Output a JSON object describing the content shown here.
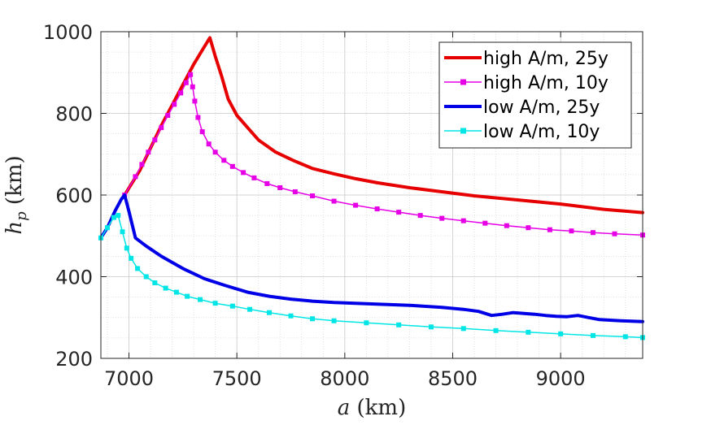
{
  "chart_data": {
    "type": "line",
    "title": "",
    "xlabel": "a (km)",
    "ylabel": "h_p (km)",
    "xlabel_parts": {
      "var": "a",
      "unit": " (km)"
    },
    "ylabel_parts": {
      "var": "h",
      "sub": "p",
      "unit": " (km)"
    },
    "xlim": [
      6870,
      9380
    ],
    "ylim": [
      200,
      1000
    ],
    "xticks": [
      7000,
      7500,
      8000,
      8500,
      9000
    ],
    "yticks": [
      200,
      400,
      600,
      800,
      1000
    ],
    "xtick_labels": [
      "7000",
      "7500",
      "8000",
      "8500",
      "9000"
    ],
    "ytick_labels": [
      "200",
      "400",
      "600",
      "800",
      "1000"
    ],
    "grid": true,
    "minor_grid": true,
    "legend_position": "top-right",
    "series": [
      {
        "name": "high A/m, 25y",
        "color": "#e60000",
        "marker": "none",
        "width": 4,
        "x": [
          6980,
          7050,
          7100,
          7150,
          7200,
          7250,
          7300,
          7340,
          7375,
          7400,
          7430,
          7460,
          7500,
          7550,
          7600,
          7680,
          7760,
          7850,
          7950,
          8050,
          8150,
          8300,
          8450,
          8600,
          8800,
          9000,
          9200,
          9380
        ],
        "values": [
          600,
          660,
          715,
          770,
          820,
          870,
          920,
          955,
          985,
          940,
          890,
          835,
          795,
          765,
          735,
          705,
          685,
          665,
          652,
          640,
          630,
          618,
          608,
          598,
          588,
          578,
          565,
          557
        ]
      },
      {
        "name": "high A/m, 10y",
        "color": "#e600e6",
        "marker": "square",
        "width": 1.5,
        "x": [
          6980,
          7030,
          7060,
          7090,
          7120,
          7150,
          7180,
          7210,
          7240,
          7265,
          7285,
          7295,
          7305,
          7320,
          7340,
          7370,
          7400,
          7440,
          7480,
          7530,
          7580,
          7640,
          7700,
          7770,
          7850,
          7950,
          8050,
          8150,
          8250,
          8350,
          8450,
          8550,
          8650,
          8750,
          8850,
          8950,
          9050,
          9150,
          9250,
          9380
        ],
        "values": [
          600,
          645,
          675,
          705,
          735,
          765,
          795,
          822,
          850,
          875,
          895,
          865,
          830,
          790,
          755,
          725,
          705,
          685,
          670,
          655,
          642,
          628,
          618,
          608,
          598,
          585,
          575,
          566,
          558,
          550,
          543,
          537,
          531,
          525,
          520,
          515,
          512,
          508,
          505,
          502
        ]
      },
      {
        "name": "low A/m, 25y",
        "color": "#0000e6",
        "marker": "none",
        "width": 4,
        "x": [
          6870,
          6900,
          6935,
          6965,
          6980,
          7000,
          7030,
          7080,
          7150,
          7250,
          7350,
          7450,
          7550,
          7650,
          7750,
          7850,
          7950,
          8050,
          8150,
          8300,
          8450,
          8550,
          8620,
          8680,
          8730,
          8780,
          8830,
          8880,
          8930,
          8980,
          9030,
          9080,
          9130,
          9180,
          9280,
          9380
        ],
        "values": [
          495,
          520,
          560,
          590,
          600,
          560,
          495,
          475,
          450,
          420,
          395,
          378,
          362,
          352,
          345,
          340,
          337,
          335,
          333,
          330,
          325,
          320,
          315,
          305,
          308,
          312,
          310,
          308,
          305,
          303,
          302,
          305,
          300,
          295,
          292,
          290
        ]
      },
      {
        "name": "low A/m, 10y",
        "color": "#00e6e6",
        "marker": "square",
        "width": 1.5,
        "x": [
          6870,
          6900,
          6930,
          6950,
          6970,
          6990,
          7010,
          7040,
          7080,
          7120,
          7170,
          7220,
          7270,
          7330,
          7400,
          7480,
          7560,
          7650,
          7750,
          7850,
          7950,
          8100,
          8250,
          8400,
          8550,
          8700,
          8850,
          9000,
          9150,
          9300,
          9380
        ],
        "values": [
          495,
          520,
          545,
          550,
          510,
          470,
          445,
          420,
          400,
          385,
          372,
          362,
          352,
          344,
          335,
          328,
          320,
          312,
          304,
          297,
          292,
          287,
          282,
          277,
          273,
          268,
          264,
          260,
          256,
          253,
          251
        ]
      }
    ]
  }
}
